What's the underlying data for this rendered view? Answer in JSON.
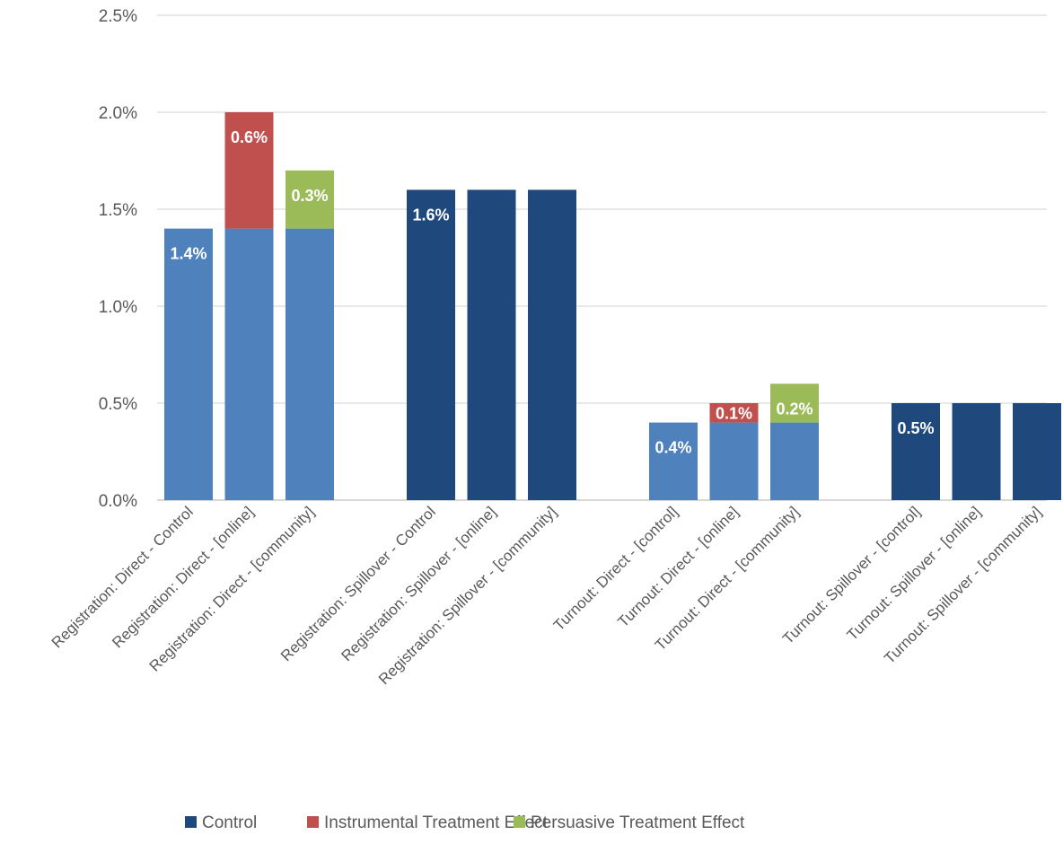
{
  "chart_data": {
    "type": "bar",
    "stacked": true,
    "title": "",
    "xlabel": "",
    "ylabel": "",
    "ylim": [
      0,
      0.025
    ],
    "y_ticks": [
      "0.0%",
      "0.5%",
      "1.0%",
      "1.5%",
      "2.0%",
      "2.5%"
    ],
    "grid": true,
    "legend_position": "bottom",
    "categories": [
      "Registration: Direct - Control",
      "Registration: Direct - [online]",
      "Registration: Direct - [community]",
      "Registration: Spillover - Control",
      "Registration: Spillover - [online]",
      "Registration: Spillover - [community]",
      "Turnout: Direct - [control]",
      "Turnout: Direct - [online]",
      "Turnout: Direct - [community]",
      "Turnout: Spillover - [control]",
      "Turnout: Spillover - [online]",
      "Turnout: Spillover - [community]"
    ],
    "base_colors": [
      "#4F81BD",
      "#4F81BD",
      "#4F81BD",
      "#1F497D",
      "#1F497D",
      "#1F497D",
      "#4F81BD",
      "#4F81BD",
      "#4F81BD",
      "#1F497D",
      "#1F497D",
      "#1F497D"
    ],
    "series": [
      {
        "name": "Control",
        "color": "#1F497D",
        "values": [
          0.014,
          0.014,
          0.014,
          0.016,
          0.016,
          0.016,
          0.004,
          0.004,
          0.004,
          0.005,
          0.005,
          0.005
        ],
        "labels": [
          "1.4%",
          null,
          null,
          "1.6%",
          null,
          null,
          "0.4%",
          null,
          null,
          "0.5%",
          null,
          null
        ]
      },
      {
        "name": "Instrumental Treatment Effect",
        "color": "#C0504D",
        "values": [
          0,
          0.006,
          0,
          0,
          0,
          0,
          0,
          0.001,
          0,
          0,
          0,
          0
        ],
        "labels": [
          null,
          "0.6%",
          null,
          null,
          null,
          null,
          null,
          "0.1%",
          null,
          null,
          null,
          null
        ]
      },
      {
        "name": "Persuasive Treatment Effect",
        "color": "#9BBB59",
        "values": [
          0,
          0,
          0.003,
          0,
          0,
          0,
          0,
          0,
          0.002,
          0,
          0,
          0
        ],
        "labels": [
          null,
          null,
          "0.3%",
          null,
          null,
          null,
          null,
          null,
          "0.2%",
          null,
          null,
          null
        ]
      }
    ],
    "gridline_color": "#D9D9D9",
    "axis_line_color": "#BFBFBF"
  }
}
